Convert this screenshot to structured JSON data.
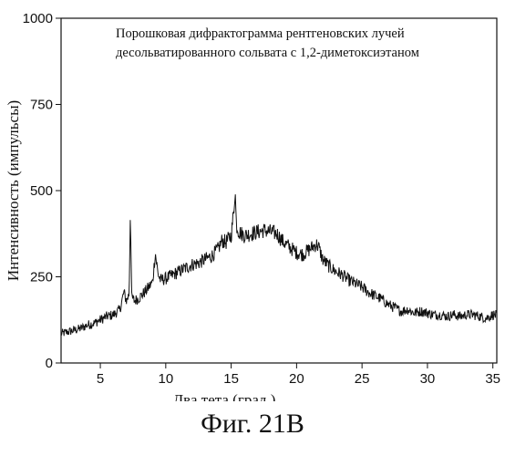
{
  "chart_data": {
    "type": "line",
    "title_lines": [
      "Порошковая дифрактограмма рентгеновских лучей",
      "десольватированного сольвата с 1,2-диметоксиэтаном"
    ],
    "xlabel": "Два тета (град.)",
    "ylabel": "Интенсивность (импульсы)",
    "xlim": [
      2,
      35.3
    ],
    "ylim": [
      0,
      1000
    ],
    "x_ticks": [
      5,
      10,
      15,
      20,
      25,
      30,
      35
    ],
    "y_ticks": [
      0,
      250,
      500,
      750,
      1000
    ],
    "x_tick_labels": [
      "5",
      "10",
      "15",
      "20",
      "25",
      "30",
      "35"
    ],
    "y_tick_labels": [
      "0",
      "250",
      "500",
      "750",
      "1000"
    ],
    "grid": false,
    "series": [
      {
        "color": "#111111",
        "x": [
          2.0,
          2.5,
          3.0,
          3.5,
          4.0,
          4.5,
          5.0,
          5.5,
          6.0,
          6.5,
          6.8,
          7.0,
          7.2,
          7.3,
          7.4,
          7.6,
          8.0,
          8.5,
          9.0,
          9.2,
          9.4,
          9.6,
          10.0,
          10.5,
          11.0,
          11.5,
          12.0,
          12.5,
          13.0,
          13.5,
          14.0,
          14.3,
          14.6,
          15.0,
          15.2,
          15.3,
          15.4,
          15.6,
          16.0,
          16.5,
          17.0,
          17.5,
          18.0,
          18.5,
          19.0,
          19.5,
          20.0,
          20.5,
          21.0,
          21.5,
          21.7,
          22.0,
          22.5,
          23.0,
          23.5,
          24.0,
          24.5,
          25.0,
          25.5,
          26.0,
          26.5,
          27.0,
          27.5,
          28.0,
          28.5,
          29.0,
          29.5,
          30.0,
          30.5,
          31.0,
          31.5,
          32.0,
          32.5,
          33.0,
          33.5,
          34.0,
          34.5,
          35.0,
          35.3
        ],
        "y": [
          85,
          90,
          95,
          100,
          110,
          115,
          125,
          135,
          140,
          155,
          205,
          180,
          200,
          445,
          190,
          180,
          190,
          210,
          235,
          320,
          260,
          240,
          245,
          255,
          265,
          275,
          285,
          290,
          300,
          310,
          330,
          355,
          350,
          370,
          440,
          505,
          400,
          380,
          370,
          375,
          380,
          385,
          380,
          375,
          350,
          335,
          320,
          315,
          330,
          345,
          335,
          300,
          280,
          265,
          255,
          240,
          230,
          220,
          205,
          195,
          185,
          170,
          160,
          150,
          155,
          145,
          150,
          145,
          140,
          140,
          135,
          140,
          135,
          140,
          140,
          135,
          130,
          140,
          138
        ]
      }
    ]
  },
  "caption": "Фиг. 21В"
}
